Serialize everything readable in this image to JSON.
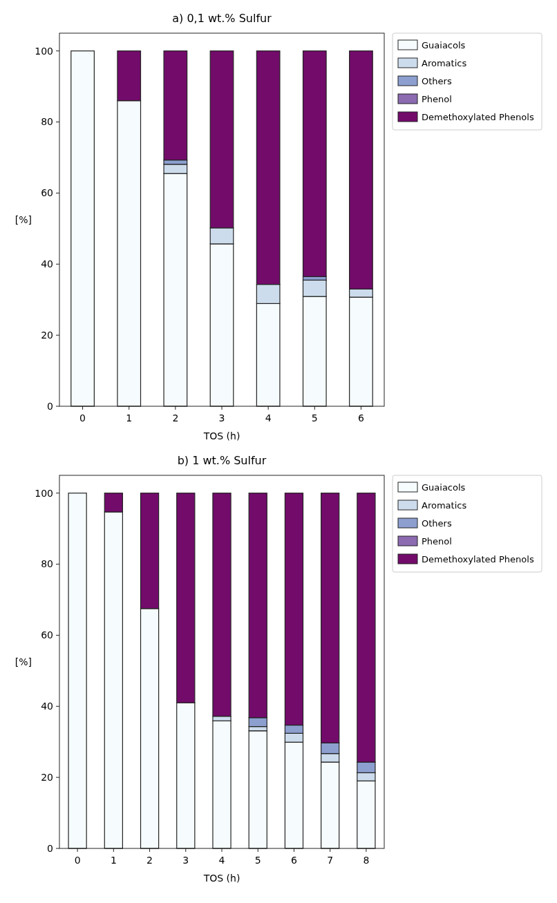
{
  "chart_data": [
    {
      "type": "bar",
      "title": "a) 0,1 wt.% Sulfur",
      "xlabel": "TOS (h)",
      "ylabel": "[%]",
      "stacked": true,
      "legend": "right",
      "categories": [
        "0",
        "1",
        "2",
        "3",
        "4",
        "5",
        "6"
      ],
      "ylim": [
        0,
        105
      ],
      "yticks": [
        0,
        20,
        40,
        60,
        80,
        100
      ],
      "series": [
        {
          "name": "Guaiacols",
          "color": "#f6fcfd",
          "values": [
            100,
            86,
            65.5,
            45.7,
            28.9,
            30.9,
            30.7
          ]
        },
        {
          "name": "Aromatics",
          "color": "#cddcec",
          "values": [
            0,
            0,
            2.6,
            4.5,
            5.4,
            4.6,
            2.3
          ]
        },
        {
          "name": "Others",
          "color": "#8c9fcf",
          "values": [
            0,
            0,
            1.2,
            0,
            0,
            1.0,
            0
          ]
        },
        {
          "name": "Phenol",
          "color": "#8c6bb1",
          "values": [
            0,
            0,
            0,
            0,
            0,
            0,
            0
          ]
        },
        {
          "name": "Demethoxylated Phenols",
          "color": "#730b6b",
          "values": [
            0,
            14,
            30.7,
            49.8,
            65.7,
            63.5,
            67.0
          ]
        }
      ]
    },
    {
      "type": "bar",
      "title": "b) 1 wt.% Sulfur",
      "xlabel": "TOS (h)",
      "ylabel": "[%]",
      "stacked": true,
      "legend": "right",
      "categories": [
        "0",
        "1",
        "2",
        "3",
        "4",
        "5",
        "6",
        "7",
        "8"
      ],
      "ylim": [
        0,
        105
      ],
      "yticks": [
        0,
        20,
        40,
        60,
        80,
        100
      ],
      "series": [
        {
          "name": "Guaiacols",
          "color": "#f6fcfd",
          "values": [
            100,
            94.7,
            67.5,
            41.0,
            35.9,
            33.1,
            29.9,
            24.3,
            19.0
          ]
        },
        {
          "name": "Aromatics",
          "color": "#cddcec",
          "values": [
            0,
            0,
            0,
            0,
            1.3,
            1.2,
            2.5,
            2.4,
            2.3
          ]
        },
        {
          "name": "Others",
          "color": "#8c9fcf",
          "values": [
            0,
            0,
            0,
            0,
            0,
            2.5,
            2.3,
            3.0,
            3.0
          ]
        },
        {
          "name": "Phenol",
          "color": "#8c6bb1",
          "values": [
            0,
            0,
            0,
            0,
            0,
            0,
            0,
            0,
            0
          ]
        },
        {
          "name": "Demethoxylated Phenols",
          "color": "#730b6b",
          "values": [
            0,
            5.3,
            32.5,
            59.0,
            62.8,
            63.2,
            65.3,
            70.3,
            75.7
          ]
        }
      ]
    }
  ]
}
